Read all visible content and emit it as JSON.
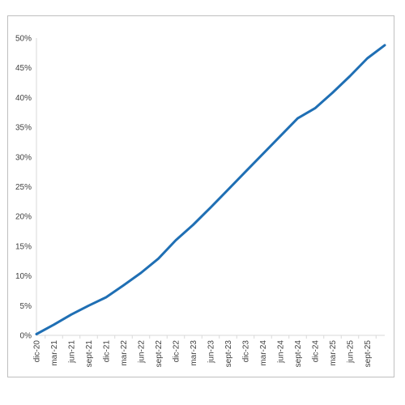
{
  "chart_data": {
    "type": "line",
    "title": "",
    "xlabel": "",
    "ylabel": "",
    "ylim": [
      0,
      50
    ],
    "y_ticks": [
      "0%",
      "5%",
      "10%",
      "15%",
      "20%",
      "25%",
      "30%",
      "35%",
      "40%",
      "45%",
      "50%"
    ],
    "x_ticks": [
      "dic-20",
      "mar-21",
      "jun-21",
      "sept-21",
      "dic-21",
      "mar-22",
      "jun-22",
      "sept-22",
      "dic-22",
      "mar-23",
      "jun-23",
      "sept-23",
      "dic-23",
      "mar-24",
      "jun-24",
      "sept-24",
      "dic-24",
      "mar-25",
      "jun-25",
      "sept-25"
    ],
    "grid": false,
    "legend": "none",
    "line_color": "#1f6fb4",
    "series": [
      {
        "x": [
          "dic-20",
          "mar-21",
          "jun-21",
          "sept-21",
          "dic-21",
          "mar-22",
          "jun-22",
          "sept-22",
          "dic-22",
          "mar-23",
          "jun-23",
          "sept-23",
          "dic-23",
          "mar-24",
          "jun-24",
          "sept-24",
          "dic-24",
          "mar-25",
          "jun-25",
          "sept-25",
          "dic-25"
        ],
        "values": [
          0.2,
          1.8,
          3.5,
          5.0,
          6.4,
          8.4,
          10.5,
          12.9,
          16.0,
          18.6,
          21.5,
          24.5,
          27.5,
          30.5,
          33.5,
          36.5,
          38.2,
          40.8,
          43.6,
          46.6,
          48.8
        ]
      }
    ]
  }
}
